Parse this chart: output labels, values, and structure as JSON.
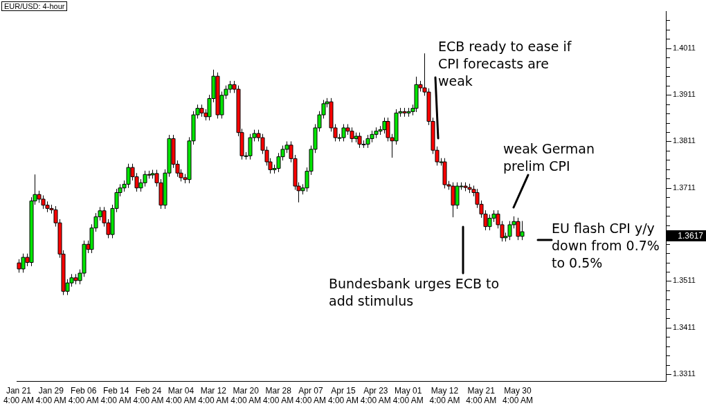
{
  "chart_data": {
    "type": "candlestick",
    "title": "EUR/USD: 4-hour",
    "categories": [
      "Jan 21 4:00 AM",
      null,
      null,
      null,
      null,
      null,
      null,
      null,
      "Jan 29 4:00 AM",
      null,
      null,
      null,
      null,
      null,
      null,
      null,
      "Feb 06 4:00 AM",
      null,
      null,
      null,
      null,
      null,
      null,
      null,
      "Feb 14 4:00 AM",
      null,
      null,
      null,
      null,
      null,
      null,
      null,
      "Feb 24 4:00 AM",
      null,
      null,
      null,
      null,
      null,
      null,
      null,
      "Mar 04 4:00 AM",
      null,
      null,
      null,
      null,
      null,
      null,
      null,
      "Mar 12 4:00 AM",
      null,
      null,
      null,
      null,
      null,
      null,
      null,
      "Mar 20 4:00 AM",
      null,
      null,
      null,
      null,
      null,
      null,
      null,
      "Mar 28 4:00 AM",
      null,
      null,
      null,
      null,
      null,
      null,
      null,
      "Apr 07 4:00 AM",
      null,
      null,
      null,
      null,
      null,
      null,
      null,
      "Apr 15 4:00 AM",
      null,
      null,
      null,
      null,
      null,
      null,
      null,
      "Apr 23 4:00 AM",
      null,
      null,
      null,
      null,
      null,
      null,
      null,
      "May 01 4:00 AM",
      null,
      null,
      null,
      null,
      null,
      null,
      null,
      null,
      "May 12 4:00 AM",
      null,
      null,
      null,
      null,
      null,
      null,
      null,
      null,
      "May 21 4:00 AM",
      null,
      null,
      null,
      null,
      null,
      null,
      null,
      null,
      "May 30 4:00 AM",
      null,
      null,
      null,
      null,
      null,
      null,
      null,
      null,
      null,
      null,
      null,
      null,
      null,
      null,
      null,
      null,
      null,
      null,
      null,
      null,
      null,
      null,
      null,
      null,
      null,
      null,
      null,
      null,
      null,
      null,
      null,
      null,
      null,
      null,
      null,
      null
    ],
    "ohlc": [
      [
        1.355,
        1.3558,
        1.3529,
        1.3537
      ],
      [
        1.3537,
        1.357,
        1.3529,
        1.3562
      ],
      [
        1.3562,
        1.357,
        1.3543,
        1.3551
      ],
      [
        1.3551,
        1.3691,
        1.3543,
        1.3683
      ],
      [
        1.3683,
        1.374,
        1.3675,
        1.3697
      ],
      [
        1.3697,
        1.3705,
        1.3679,
        1.3687
      ],
      [
        1.3687,
        1.3695,
        1.3666,
        1.3674
      ],
      [
        1.3674,
        1.3682,
        1.3659,
        1.3667
      ],
      [
        1.3667,
        1.3675,
        1.3656,
        1.3664
      ],
      [
        1.3664,
        1.3672,
        1.3628,
        1.3636
      ],
      [
        1.3636,
        1.3644,
        1.3561,
        1.3569
      ],
      [
        1.3569,
        1.3577,
        1.3481,
        1.3489
      ],
      [
        1.3489,
        1.3515,
        1.3481,
        1.3507
      ],
      [
        1.3507,
        1.3526,
        1.3499,
        1.3518
      ],
      [
        1.3518,
        1.3526,
        1.3504,
        1.3512
      ],
      [
        1.3512,
        1.3536,
        1.3504,
        1.3528
      ],
      [
        1.3528,
        1.3598,
        1.352,
        1.359
      ],
      [
        1.359,
        1.3598,
        1.3571,
        1.3579
      ],
      [
        1.3579,
        1.3633,
        1.3571,
        1.3625
      ],
      [
        1.3625,
        1.3657,
        1.3617,
        1.3649
      ],
      [
        1.3649,
        1.367,
        1.3641,
        1.3662
      ],
      [
        1.3662,
        1.367,
        1.3628,
        1.3636
      ],
      [
        1.3636,
        1.3644,
        1.3603,
        1.3611
      ],
      [
        1.3611,
        1.3675,
        1.3603,
        1.3667
      ],
      [
        1.3667,
        1.3709,
        1.3659,
        1.3701
      ],
      [
        1.3701,
        1.3719,
        1.3693,
        1.3711
      ],
      [
        1.3711,
        1.3727,
        1.3703,
        1.3719
      ],
      [
        1.3719,
        1.3763,
        1.3711,
        1.3755
      ],
      [
        1.3755,
        1.3763,
        1.3727,
        1.3735
      ],
      [
        1.3735,
        1.3743,
        1.3703,
        1.3711
      ],
      [
        1.3711,
        1.373,
        1.3703,
        1.3722
      ],
      [
        1.3722,
        1.3748,
        1.3714,
        1.374
      ],
      [
        1.374,
        1.3748,
        1.3731,
        1.3739
      ],
      [
        1.3739,
        1.375,
        1.3731,
        1.3742
      ],
      [
        1.3742,
        1.375,
        1.3714,
        1.3722
      ],
      [
        1.3722,
        1.373,
        1.3666,
        1.3674
      ],
      [
        1.3674,
        1.3751,
        1.3666,
        1.3743
      ],
      [
        1.3743,
        1.3825,
        1.3735,
        1.3817
      ],
      [
        1.3817,
        1.3825,
        1.3754,
        1.3762
      ],
      [
        1.3762,
        1.377,
        1.3735,
        1.3743
      ],
      [
        1.3743,
        1.3751,
        1.3725,
        1.3733
      ],
      [
        1.3733,
        1.3741,
        1.3721,
        1.3729
      ],
      [
        1.3729,
        1.382,
        1.3721,
        1.3812
      ],
      [
        1.3812,
        1.3876,
        1.3804,
        1.3868
      ],
      [
        1.3868,
        1.389,
        1.386,
        1.3882
      ],
      [
        1.3882,
        1.389,
        1.3864,
        1.3872
      ],
      [
        1.3872,
        1.388,
        1.3856,
        1.3864
      ],
      [
        1.3864,
        1.3911,
        1.3856,
        1.3903
      ],
      [
        1.3903,
        1.3965,
        1.3895,
        1.3951
      ],
      [
        1.3951,
        1.3959,
        1.386,
        1.3868
      ],
      [
        1.3868,
        1.3918,
        1.386,
        1.391
      ],
      [
        1.391,
        1.3931,
        1.3902,
        1.3923
      ],
      [
        1.3923,
        1.3941,
        1.3915,
        1.3933
      ],
      [
        1.3933,
        1.3941,
        1.3915,
        1.3923
      ],
      [
        1.3923,
        1.3931,
        1.3822,
        1.383
      ],
      [
        1.383,
        1.3838,
        1.3772,
        1.378
      ],
      [
        1.378,
        1.3788,
        1.3772,
        1.378
      ],
      [
        1.378,
        1.3827,
        1.3772,
        1.3819
      ],
      [
        1.3819,
        1.3836,
        1.3811,
        1.3828
      ],
      [
        1.3828,
        1.3836,
        1.3811,
        1.3819
      ],
      [
        1.3819,
        1.3827,
        1.3784,
        1.3792
      ],
      [
        1.3792,
        1.38,
        1.3759,
        1.3767
      ],
      [
        1.3767,
        1.3775,
        1.3742,
        1.375
      ],
      [
        1.375,
        1.3761,
        1.3742,
        1.3753
      ],
      [
        1.3753,
        1.3786,
        1.3745,
        1.3778
      ],
      [
        1.3778,
        1.3802,
        1.377,
        1.3794
      ],
      [
        1.3794,
        1.3811,
        1.3786,
        1.3803
      ],
      [
        1.3803,
        1.3811,
        1.3766,
        1.3774
      ],
      [
        1.3774,
        1.3782,
        1.3707,
        1.3715
      ],
      [
        1.3715,
        1.3723,
        1.368,
        1.3705
      ],
      [
        1.3705,
        1.3719,
        1.3697,
        1.3711
      ],
      [
        1.3711,
        1.3755,
        1.3703,
        1.3747
      ],
      [
        1.3747,
        1.3802,
        1.3739,
        1.3794
      ],
      [
        1.3794,
        1.3848,
        1.3786,
        1.384
      ],
      [
        1.384,
        1.3876,
        1.3832,
        1.3868
      ],
      [
        1.3868,
        1.39,
        1.386,
        1.3892
      ],
      [
        1.3892,
        1.3904,
        1.3884,
        1.3896
      ],
      [
        1.3896,
        1.3904,
        1.3832,
        1.384
      ],
      [
        1.384,
        1.3848,
        1.3811,
        1.3819
      ],
      [
        1.3819,
        1.3827,
        1.3811,
        1.3819
      ],
      [
        1.3819,
        1.3848,
        1.3811,
        1.384
      ],
      [
        1.384,
        1.3848,
        1.3825,
        1.3833
      ],
      [
        1.3833,
        1.3841,
        1.3809,
        1.3817
      ],
      [
        1.3817,
        1.383,
        1.3809,
        1.3822
      ],
      [
        1.3822,
        1.383,
        1.3797,
        1.3805
      ],
      [
        1.3805,
        1.3813,
        1.3797,
        1.3805
      ],
      [
        1.3805,
        1.3825,
        1.3797,
        1.3817
      ],
      [
        1.3817,
        1.3834,
        1.3809,
        1.3826
      ],
      [
        1.3826,
        1.3841,
        1.3818,
        1.3833
      ],
      [
        1.3833,
        1.3844,
        1.3825,
        1.3836
      ],
      [
        1.3836,
        1.3862,
        1.3828,
        1.3854
      ],
      [
        1.3854,
        1.3862,
        1.3811,
        1.3819
      ],
      [
        1.3819,
        1.3827,
        1.3776,
        1.3812
      ],
      [
        1.3812,
        1.388,
        1.3804,
        1.3872
      ],
      [
        1.3872,
        1.3883,
        1.3864,
        1.3875
      ],
      [
        1.3875,
        1.3883,
        1.3864,
        1.3872
      ],
      [
        1.3872,
        1.3883,
        1.3864,
        1.3875
      ],
      [
        1.3875,
        1.389,
        1.3867,
        1.3882
      ],
      [
        1.3882,
        1.395,
        1.3874,
        1.3933
      ],
      [
        1.3933,
        1.3941,
        1.3918,
        1.3926
      ],
      [
        1.3926,
        1.4,
        1.3909,
        1.3917
      ],
      [
        1.3917,
        1.3925,
        1.3846,
        1.3854
      ],
      [
        1.3854,
        1.3862,
        1.3784,
        1.3792
      ],
      [
        1.3792,
        1.38,
        1.3759,
        1.3767
      ],
      [
        1.3767,
        1.3775,
        1.3759,
        1.3767
      ],
      [
        1.3767,
        1.3775,
        1.371,
        1.3718
      ],
      [
        1.3718,
        1.3726,
        1.3707,
        1.3715
      ],
      [
        1.3715,
        1.3723,
        1.3648,
        1.3674
      ],
      [
        1.3674,
        1.3723,
        1.3666,
        1.3715
      ],
      [
        1.3715,
        1.3723,
        1.3707,
        1.3715
      ],
      [
        1.3715,
        1.3723,
        1.3704,
        1.3712
      ],
      [
        1.3712,
        1.372,
        1.37,
        1.3708
      ],
      [
        1.3708,
        1.3716,
        1.3693,
        1.3701
      ],
      [
        1.3701,
        1.3709,
        1.3668,
        1.3676
      ],
      [
        1.3676,
        1.3684,
        1.3647,
        1.3655
      ],
      [
        1.3655,
        1.3663,
        1.362,
        1.3628
      ],
      [
        1.3628,
        1.3654,
        1.362,
        1.3646
      ],
      [
        1.3646,
        1.3663,
        1.3638,
        1.3655
      ],
      [
        1.3655,
        1.3663,
        1.3624,
        1.3632
      ],
      [
        1.3632,
        1.364,
        1.3596,
        1.3604
      ],
      [
        1.3604,
        1.3615,
        1.3596,
        1.3607
      ],
      [
        1.3607,
        1.364,
        1.3599,
        1.3632
      ],
      [
        1.3632,
        1.365,
        1.3624,
        1.3639
      ],
      [
        1.3639,
        1.3647,
        1.3599,
        1.3607
      ],
      [
        1.3607,
        1.364,
        1.3599,
        1.3617
      ],
      null,
      null,
      null,
      null,
      null,
      null,
      null,
      null,
      null,
      null,
      null,
      null,
      null,
      null,
      null,
      null,
      null,
      null,
      null,
      null,
      null,
      null,
      null,
      null,
      null,
      null,
      null,
      null,
      null,
      null,
      null,
      null,
      null,
      null,
      null
    ],
    "colors": [
      "#ff0000",
      "#00e600",
      "#ff0000",
      "#00e600",
      "#00e600",
      "#ff0000",
      "#ff0000",
      "#ff0000",
      "#ff0000",
      "#ff0000",
      "#ff0000",
      "#ff0000",
      "#00e600",
      "#00e600",
      "#ff0000",
      "#00e600",
      "#00e600",
      "#ff0000",
      "#00e600",
      "#00e600",
      "#00e600",
      "#ff0000",
      "#ff0000",
      "#00e600",
      "#00e600",
      "#00e600",
      "#00e600",
      "#00e600",
      "#ff0000",
      "#ff0000",
      "#00e600",
      "#00e600",
      "#ff0000",
      "#00e600",
      "#ff0000",
      "#ff0000",
      "#00e600",
      "#00e600",
      "#ff0000",
      "#ff0000",
      "#ff0000",
      "#ff0000",
      "#00e600",
      "#00e600",
      "#00e600",
      "#ff0000",
      "#ff0000",
      "#00e600",
      "#00e600",
      "#ff0000",
      "#00e600",
      "#00e600",
      "#00e600",
      "#ff0000",
      "#ff0000",
      "#ff0000",
      "#00e600",
      "#00e600",
      "#00e600",
      "#ff0000",
      "#ff0000",
      "#ff0000",
      "#ff0000",
      "#00e600",
      "#00e600",
      "#00e600",
      "#00e600",
      "#ff0000",
      "#ff0000",
      "#ff0000",
      "#00e600",
      "#00e600",
      "#00e600",
      "#00e600",
      "#00e600",
      "#00e600",
      "#00e600",
      "#ff0000",
      "#ff0000",
      "#00e600",
      "#00e600",
      "#ff0000",
      "#ff0000",
      "#00e600",
      "#ff0000",
      "#00e600",
      "#00e600",
      "#00e600",
      "#00e600",
      "#00e600",
      "#00e600",
      "#ff0000",
      "#ff0000",
      "#00e600",
      "#00e600",
      "#ff0000",
      "#00e600",
      "#00e600",
      "#00e600",
      "#ff0000",
      "#ff0000",
      "#ff0000",
      "#ff0000",
      "#ff0000",
      "#00e600",
      "#ff0000",
      "#ff0000",
      "#ff0000",
      "#00e600",
      "#00e600",
      "#ff0000",
      "#ff0000",
      "#ff0000",
      "#ff0000",
      "#ff0000",
      "#ff0000",
      "#00e600",
      "#00e600",
      "#ff0000",
      "#ff0000",
      "#00e600",
      "#00e600",
      "#00e600",
      "#ff0000",
      "#00e600",
      null,
      null,
      null,
      null,
      null,
      null,
      null,
      null,
      null,
      null,
      null,
      null,
      null,
      null,
      null,
      null,
      null,
      null,
      null,
      null,
      null,
      null,
      null,
      null,
      null,
      null,
      null,
      null,
      null,
      null,
      null,
      null,
      null,
      null,
      null
    ],
    "ylim": [
      1.3296,
      1.409
    ],
    "yticks": [
      1.3311,
      {
        "value": 1.3331,
        "label": null
      },
      {
        "value": 1.3351,
        "label": null
      },
      {
        "value": 1.3371,
        "label": null
      },
      {
        "value": 1.3391,
        "label": null
      },
      1.3411,
      {
        "value": 1.3431,
        "label": null
      },
      {
        "value": 1.3451,
        "label": null
      },
      {
        "value": 1.3471,
        "label": null
      },
      {
        "value": 1.3491,
        "label": null
      },
      1.3511,
      {
        "value": 1.3531,
        "label": null
      },
      {
        "value": 1.3551,
        "label": null
      },
      {
        "value": 1.3571,
        "label": null
      },
      {
        "value": 1.3591,
        "label": null
      },
      {
        "value": 1.3611,
        "label": null
      },
      {
        "value": 1.3631,
        "label": null
      },
      {
        "value": 1.3651,
        "label": null
      },
      {
        "value": 1.3671,
        "label": null
      },
      {
        "value": 1.3691,
        "label": null
      },
      1.3711,
      {
        "value": 1.3731,
        "label": null
      },
      {
        "value": 1.3751,
        "label": null
      },
      {
        "value": 1.3771,
        "label": null
      },
      {
        "value": 1.3791,
        "label": null
      },
      1.3811,
      {
        "value": 1.3831,
        "label": null
      },
      {
        "value": 1.3851,
        "label": null
      },
      {
        "value": 1.3871,
        "label": null
      },
      {
        "value": 1.3891,
        "label": null
      },
      1.3911,
      {
        "value": 1.3931,
        "label": null
      },
      {
        "value": 1.3951,
        "label": null
      },
      {
        "value": 1.3971,
        "label": null
      },
      {
        "value": 1.3991,
        "label": null
      },
      1.4011,
      {
        "value": 1.4031,
        "label": null
      },
      {
        "value": 1.4051,
        "label": null
      },
      {
        "value": 1.4071,
        "label": null
      }
    ],
    "annotations": [
      "ECB ready to ease if CPI forecasts are weak",
      "weak German prelim CPI",
      "EU flash CPI y/y down from 0.7% to 0.5%",
      "Bundesbank urges ECB to add stimulus",
      "1.3617"
    ],
    "grid": false,
    "legend": false
  }
}
